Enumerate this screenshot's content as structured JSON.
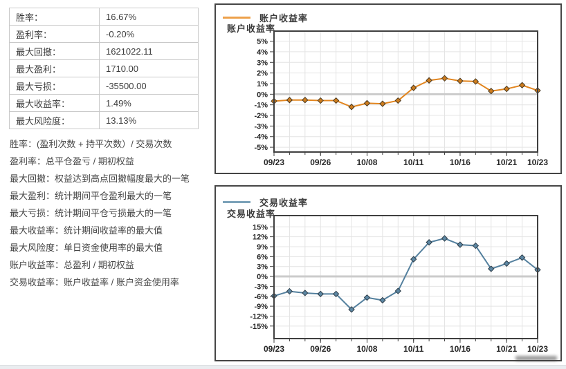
{
  "stats_table": {
    "rows": [
      {
        "label": "胜率：",
        "value": "16.67%"
      },
      {
        "label": "盈利率：",
        "value": "-0.20%"
      },
      {
        "label": "最大回撤：",
        "value": "1621022.11"
      },
      {
        "label": "最大盈利：",
        "value": "1710.00"
      },
      {
        "label": "最大亏损：",
        "value": "-35500.00"
      },
      {
        "label": "最大收益率：",
        "value": "1.49%"
      },
      {
        "label": "最大风险度：",
        "value": "13.13%"
      }
    ]
  },
  "definitions": [
    "胜率：(盈利次数 + 持平次数）/ 交易次数",
    "盈利率：总平仓盈亏 / 期初权益",
    "最大回撤：权益达到高点回撤幅度最大的一笔",
    "最大盈利：统计期间平仓盈利最大的一笔",
    "最大亏损：统计期间平仓亏损最大的一笔",
    "最大收益率：统计期间收益率的最大值",
    "最大风险度：单日资金使用率的最大值",
    "账户收益率：总盈利 / 期初权益",
    "交易收益率：账户收益率 / 账户资金使用率"
  ],
  "chart_data": [
    {
      "type": "line",
      "title": "账户收益率",
      "legend": "账户收益率",
      "ylabel": "账户收益率",
      "x_tick_labels": [
        "09/23",
        "09/26",
        "10/08",
        "10/11",
        "10/16",
        "10/21",
        "10/23"
      ],
      "x_tick_indices": [
        0,
        3,
        6,
        9,
        12,
        15,
        17
      ],
      "values": [
        -0.65,
        -0.55,
        -0.55,
        -0.6,
        -0.6,
        -1.2,
        -0.85,
        -0.9,
        -0.6,
        0.6,
        1.3,
        1.5,
        1.25,
        1.2,
        0.3,
        0.5,
        0.85,
        0.35
      ],
      "y_ticks": [
        5,
        4,
        3,
        2,
        1,
        0,
        -1,
        -2,
        -3,
        -4,
        -5
      ],
      "y_tick_suffix": "%",
      "ylim": [
        -5.45,
        5.95
      ],
      "grid": true,
      "legend_position": "top-left",
      "line_color": "#e2851e",
      "legend_color": "#eda04a",
      "marker_fill": "#cd7c1e",
      "marker_stroke": "#4a3a22"
    },
    {
      "type": "line",
      "title": "交易收益率",
      "legend": "交易收益率",
      "ylabel": "交易收益率",
      "x_tick_labels": [
        "09/23",
        "09/26",
        "10/08",
        "10/11",
        "10/16",
        "10/21",
        "10/23"
      ],
      "x_tick_indices": [
        0,
        3,
        6,
        9,
        12,
        15,
        17
      ],
      "values": [
        -5.9,
        -4.5,
        -5.0,
        -5.3,
        -5.3,
        -10.0,
        -6.4,
        -7.2,
        -4.4,
        5.2,
        10.3,
        11.5,
        9.6,
        9.3,
        2.3,
        3.9,
        5.7,
        2.0
      ],
      "y_ticks": [
        15,
        12,
        9,
        6,
        3,
        0,
        -3,
        -6,
        -9,
        -12,
        -15
      ],
      "y_tick_suffix": "%",
      "ylim": [
        -18.8,
        18.4
      ],
      "grid": true,
      "legend_position": "top-left",
      "line_color": "#54809e",
      "legend_color": "#7ba2b9",
      "marker_fill": "#5d87a3",
      "marker_stroke": "#2e3e4a"
    }
  ]
}
